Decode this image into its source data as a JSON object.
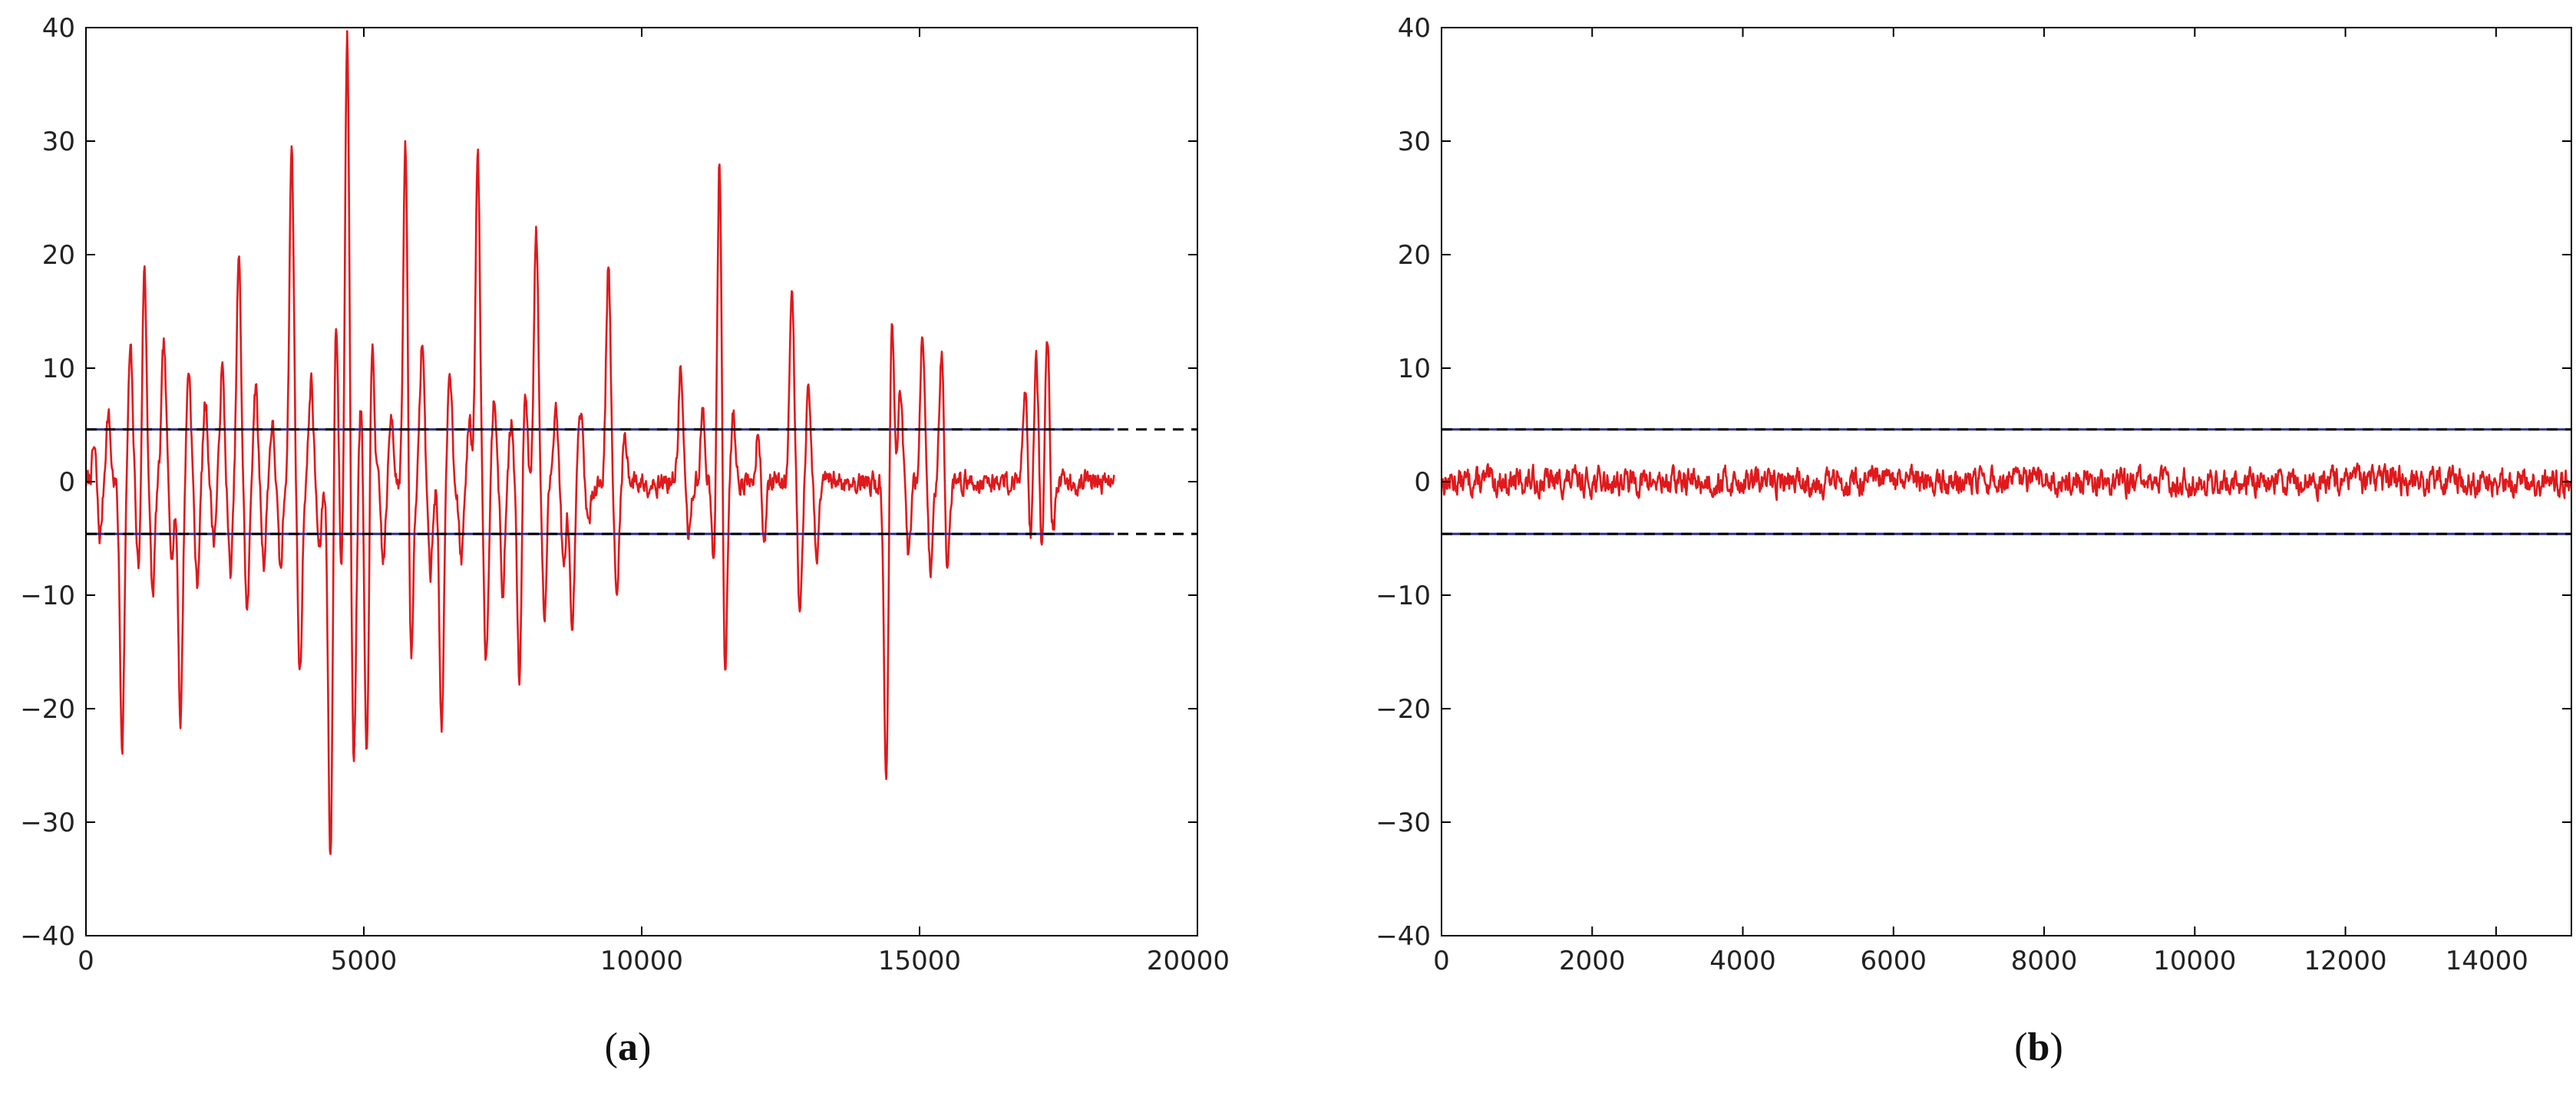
{
  "chart_data": [
    {
      "type": "line",
      "panel_label": "a",
      "xlim": [
        0,
        20000
      ],
      "ylim": [
        -40,
        40
      ],
      "x_ticks": [
        "0",
        "5000",
        "10000",
        "15000",
        "20000"
      ],
      "y_ticks": [
        "40",
        "30",
        "20",
        "10",
        "0",
        "−10",
        "−20",
        "−30",
        "−40"
      ],
      "grid": false,
      "threshold_lines": {
        "upper": 4.6,
        "lower": -4.6,
        "solid_extent": [
          0,
          18500
        ],
        "dashed_extent": [
          0,
          20000
        ]
      },
      "series": [
        {
          "line_color": "#e0191c",
          "x_range": [
            0,
            18500
          ],
          "background_amplitude": 1.3,
          "spikes": [
            {
              "x": 150,
              "y": 3
            },
            {
              "x": 250,
              "y": -5
            },
            {
              "x": 400,
              "y": 6
            },
            {
              "x": 650,
              "y": -23
            },
            {
              "x": 800,
              "y": 11.5
            },
            {
              "x": 950,
              "y": -8
            },
            {
              "x": 1050,
              "y": 19
            },
            {
              "x": 1200,
              "y": -10
            },
            {
              "x": 1400,
              "y": 12
            },
            {
              "x": 1550,
              "y": -6
            },
            {
              "x": 1700,
              "y": -21
            },
            {
              "x": 1850,
              "y": 10
            },
            {
              "x": 2000,
              "y": -9
            },
            {
              "x": 2150,
              "y": 7
            },
            {
              "x": 2300,
              "y": -5
            },
            {
              "x": 2450,
              "y": 10
            },
            {
              "x": 2600,
              "y": -8
            },
            {
              "x": 2750,
              "y": 19.5
            },
            {
              "x": 2900,
              "y": -11.5
            },
            {
              "x": 3050,
              "y": 8.5
            },
            {
              "x": 3200,
              "y": -7
            },
            {
              "x": 3350,
              "y": 5
            },
            {
              "x": 3500,
              "y": -8
            },
            {
              "x": 3700,
              "y": 29.5
            },
            {
              "x": 3850,
              "y": -17
            },
            {
              "x": 4050,
              "y": 9
            },
            {
              "x": 4200,
              "y": -6
            },
            {
              "x": 4400,
              "y": -34
            },
            {
              "x": 4500,
              "y": 15.5
            },
            {
              "x": 4600,
              "y": -9
            },
            {
              "x": 4700,
              "y": 40
            },
            {
              "x": 4820,
              "y": -25
            },
            {
              "x": 4950,
              "y": 7
            },
            {
              "x": 5050,
              "y": -25.5
            },
            {
              "x": 5150,
              "y": 12
            },
            {
              "x": 5350,
              "y": -7
            },
            {
              "x": 5500,
              "y": 6
            },
            {
              "x": 5750,
              "y": 30
            },
            {
              "x": 5850,
              "y": -16
            },
            {
              "x": 6050,
              "y": 12.5
            },
            {
              "x": 6200,
              "y": -8
            },
            {
              "x": 6400,
              "y": -21.5
            },
            {
              "x": 6550,
              "y": 10
            },
            {
              "x": 6750,
              "y": -7
            },
            {
              "x": 6900,
              "y": 5
            },
            {
              "x": 7050,
              "y": 29.5
            },
            {
              "x": 7200,
              "y": -15.5
            },
            {
              "x": 7350,
              "y": 8
            },
            {
              "x": 7500,
              "y": -10
            },
            {
              "x": 7650,
              "y": 5
            },
            {
              "x": 7800,
              "y": -18
            },
            {
              "x": 7900,
              "y": 8.5
            },
            {
              "x": 8100,
              "y": 22.5
            },
            {
              "x": 8250,
              "y": -12
            },
            {
              "x": 8450,
              "y": 7
            },
            {
              "x": 8600,
              "y": -8
            },
            {
              "x": 8750,
              "y": -14.5
            },
            {
              "x": 8900,
              "y": 6
            },
            {
              "x": 9050,
              "y": -4
            },
            {
              "x": 9400,
              "y": 19.5
            },
            {
              "x": 9550,
              "y": -10.5
            },
            {
              "x": 9700,
              "y": 4
            },
            {
              "x": 10700,
              "y": 10
            },
            {
              "x": 10850,
              "y": -5
            },
            {
              "x": 11100,
              "y": 6
            },
            {
              "x": 11300,
              "y": -8
            },
            {
              "x": 11400,
              "y": 29.5
            },
            {
              "x": 11500,
              "y": -17.5
            },
            {
              "x": 11650,
              "y": 6
            },
            {
              "x": 12100,
              "y": 5
            },
            {
              "x": 12200,
              "y": -5
            },
            {
              "x": 12700,
              "y": 18
            },
            {
              "x": 12850,
              "y": -11.5
            },
            {
              "x": 13000,
              "y": 8
            },
            {
              "x": 13150,
              "y": -7
            },
            {
              "x": 14400,
              "y": -26.5
            },
            {
              "x": 14500,
              "y": 14
            },
            {
              "x": 14650,
              "y": 8
            },
            {
              "x": 14800,
              "y": -7
            },
            {
              "x": 15050,
              "y": 13.5
            },
            {
              "x": 15200,
              "y": -8
            },
            {
              "x": 15400,
              "y": 12
            },
            {
              "x": 15500,
              "y": -8
            },
            {
              "x": 16900,
              "y": 9
            },
            {
              "x": 17000,
              "y": -5
            },
            {
              "x": 17100,
              "y": 11
            },
            {
              "x": 17200,
              "y": -6
            },
            {
              "x": 17300,
              "y": 13
            },
            {
              "x": 17400,
              "y": -4.5
            }
          ]
        }
      ]
    },
    {
      "type": "line",
      "panel_label": "b",
      "xlim": [
        0,
        15000
      ],
      "ylim": [
        -40,
        40
      ],
      "x_ticks": [
        "0",
        "2000",
        "4000",
        "6000",
        "8000",
        "10000",
        "12000",
        "14000"
      ],
      "y_ticks": [
        "40",
        "30",
        "20",
        "10",
        "0",
        "−10",
        "−20",
        "−30",
        "−40"
      ],
      "grid": false,
      "threshold_lines": {
        "upper": 4.6,
        "lower": -4.6,
        "solid_extent": [
          0,
          15000
        ],
        "dashed_extent": [
          0,
          15000
        ]
      },
      "series": [
        {
          "line_color": "#e0191c",
          "x_range": [
            0,
            15000
          ],
          "background_amplitude": 1.5,
          "spikes": []
        }
      ]
    }
  ],
  "captions": {
    "a": {
      "open": "(",
      "letter": "a",
      "close": ")"
    },
    "b": {
      "open": "(",
      "letter": "b",
      "close": ")"
    }
  },
  "colors": {
    "signal": "#e0191c",
    "threshold_solid": "#2b2b8f",
    "threshold_dashed": "#000000",
    "axes": "#000000"
  }
}
